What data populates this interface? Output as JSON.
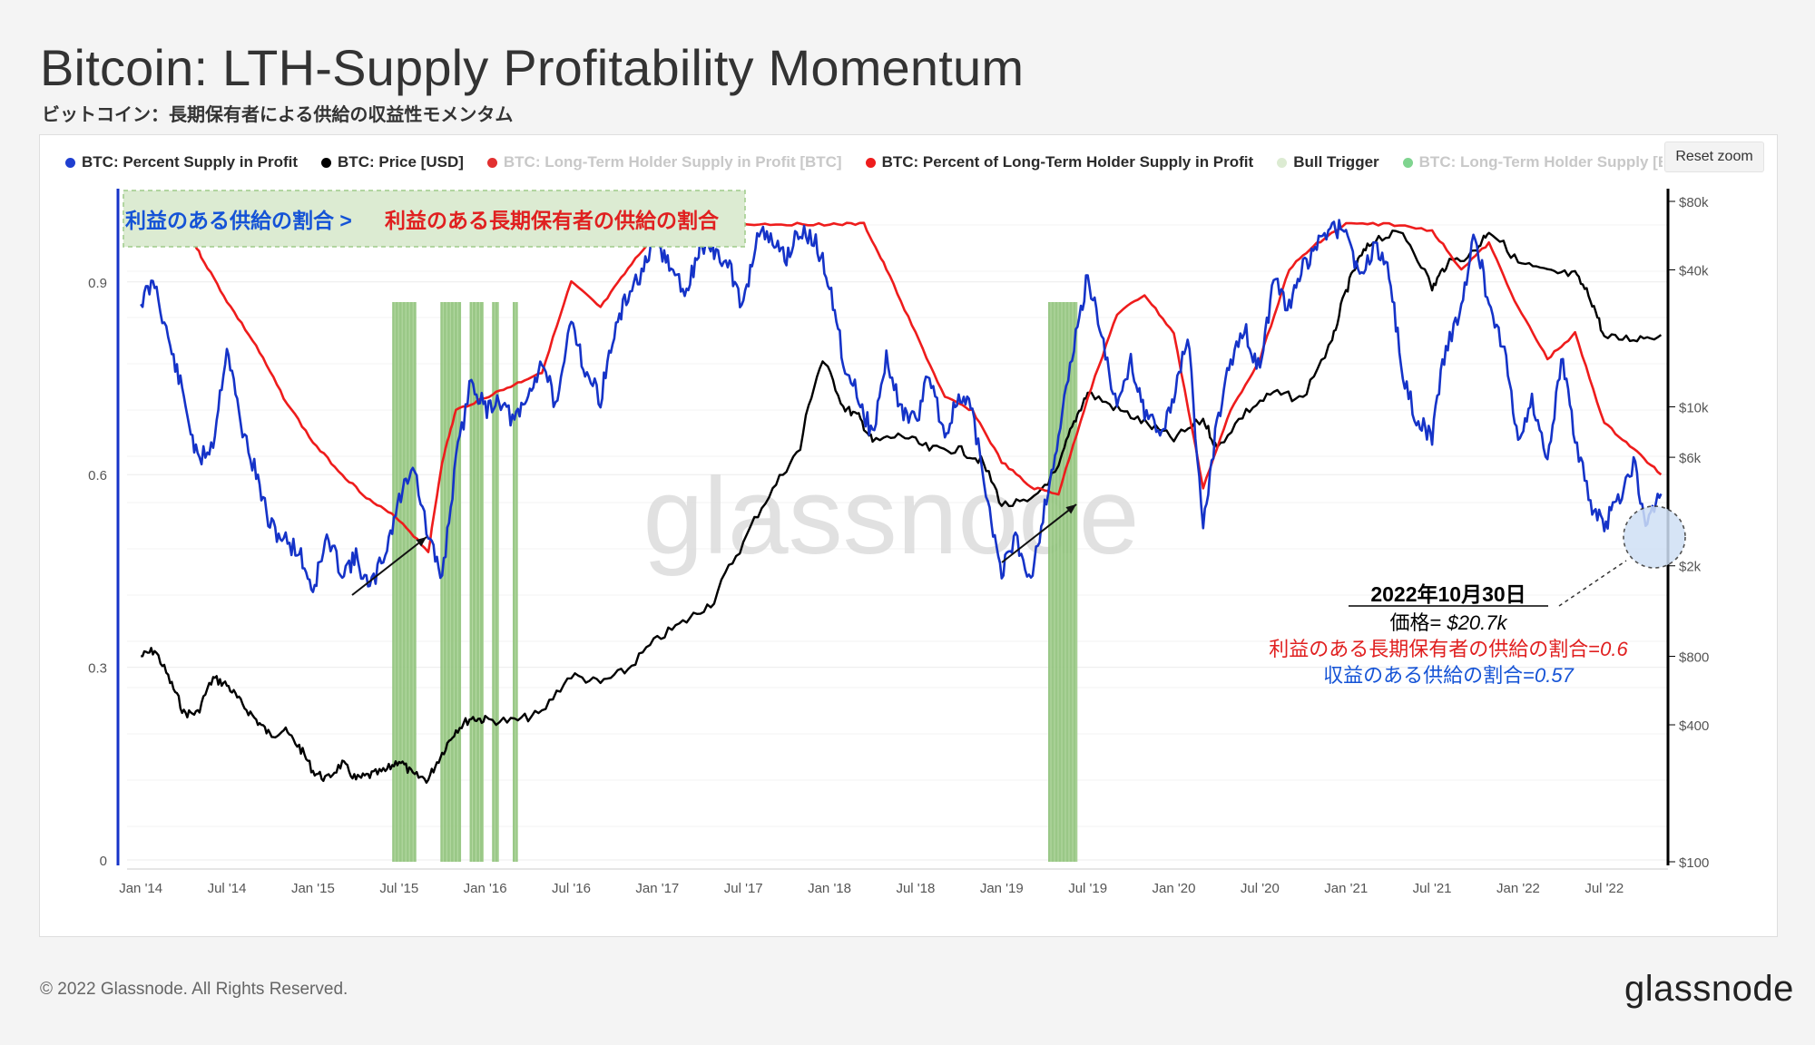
{
  "title": "Bitcoin: LTH-Supply Profitability Momentum",
  "subtitle": "ビットコイン：長期保有者による供給の収益性モメンタム",
  "reset_zoom": "Reset zoom",
  "footer": "© 2022 Glassnode. All Rights Reserved.",
  "brand": "glassnode",
  "watermark": "glassnode",
  "legend": [
    {
      "label": "BTC: Percent Supply in Profit",
      "color": "#1f3fd0",
      "dim": false
    },
    {
      "label": "BTC: Price [USD]",
      "color": "#000000",
      "dim": false
    },
    {
      "label": "BTC: Long-Term Holder Supply in Profit [BTC]",
      "color": "#e23030",
      "dim": true
    },
    {
      "label": "BTC: Percent of Long-Term Holder Supply in Profit",
      "color": "#ee1c1c",
      "dim": false
    },
    {
      "label": "Bull Trigger",
      "color": "#dcebd2",
      "dim": false
    },
    {
      "label": "BTC: Long-Term Holder Supply [BTC",
      "color": "#7fd48f",
      "dim": true
    }
  ],
  "annotation_box": {
    "blue_text": "利益のある供給の割合 >",
    "red_text": "利益のある長期保有者の供給の割合"
  },
  "callout": {
    "date": "2022年10月30日",
    "price_label": "価格= ",
    "price_value": "$20.7k",
    "lth_label": "利益のある長期保有者の供給の割合=",
    "lth_value": "0.6",
    "supply_label": "収益のある供給の割合=",
    "supply_value": "0.57"
  },
  "colors": {
    "supply": "#1533c8",
    "price": "#000000",
    "lth": "#ee1c1c",
    "trigger": "#8fc27a",
    "blue_text": "#1553d6",
    "red_text": "#e02020"
  },
  "chart_data": {
    "type": "line",
    "x_ticks": [
      "Jan '14",
      "Jul '14",
      "Jan '15",
      "Jul '15",
      "Jan '16",
      "Jul '16",
      "Jan '17",
      "Jul '17",
      "Jan '18",
      "Jul '18",
      "Jan '19",
      "Jul '19",
      "Jan '20",
      "Jul '20",
      "Jan '21",
      "Jul '21",
      "Jan '22",
      "Jul '22"
    ],
    "x_range": [
      2013.92,
      2022.87
    ],
    "y_left": {
      "ticks": [
        "0",
        "0.3",
        "0.6",
        "0.9"
      ],
      "range": [
        0,
        1.0
      ]
    },
    "y_right": {
      "scale": "log",
      "ticks": [
        "$100",
        "$400",
        "$800",
        "$2k",
        "$6k",
        "$10k",
        "$40k",
        "$80k"
      ],
      "tick_values": [
        100,
        400,
        800,
        2000,
        6000,
        10000,
        40000,
        80000
      ],
      "range": [
        100,
        80000
      ]
    },
    "series": [
      {
        "name": "BTC: Percent Supply in Profit",
        "axis": "left",
        "x": [
          2014.0,
          2014.08,
          2014.17,
          2014.25,
          2014.33,
          2014.42,
          2014.5,
          2014.58,
          2014.67,
          2014.75,
          2014.83,
          2014.92,
          2015.0,
          2015.08,
          2015.17,
          2015.25,
          2015.33,
          2015.42,
          2015.5,
          2015.58,
          2015.67,
          2015.75,
          2015.83,
          2015.92,
          2016.0,
          2016.08,
          2016.17,
          2016.25,
          2016.33,
          2016.42,
          2016.5,
          2016.58,
          2016.67,
          2016.75,
          2016.83,
          2016.92,
          2017.0,
          2017.08,
          2017.17,
          2017.25,
          2017.33,
          2017.42,
          2017.5,
          2017.58,
          2017.67,
          2017.75,
          2017.83,
          2017.92,
          2018.0,
          2018.08,
          2018.17,
          2018.25,
          2018.33,
          2018.42,
          2018.5,
          2018.58,
          2018.67,
          2018.75,
          2018.83,
          2018.92,
          2019.0,
          2019.08,
          2019.17,
          2019.25,
          2019.33,
          2019.42,
          2019.5,
          2019.58,
          2019.67,
          2019.75,
          2019.83,
          2019.92,
          2020.0,
          2020.08,
          2020.17,
          2020.25,
          2020.33,
          2020.42,
          2020.5,
          2020.58,
          2020.67,
          2020.75,
          2020.83,
          2020.92,
          2021.0,
          2021.08,
          2021.17,
          2021.25,
          2021.33,
          2021.42,
          2021.5,
          2021.58,
          2021.67,
          2021.75,
          2021.83,
          2021.92,
          2022.0,
          2022.08,
          2022.17,
          2022.25,
          2022.33,
          2022.42,
          2022.5,
          2022.58,
          2022.67,
          2022.75,
          2022.83
        ],
        "y": [
          0.87,
          0.9,
          0.8,
          0.72,
          0.62,
          0.65,
          0.8,
          0.68,
          0.6,
          0.52,
          0.5,
          0.48,
          0.42,
          0.5,
          0.45,
          0.47,
          0.42,
          0.48,
          0.56,
          0.62,
          0.5,
          0.44,
          0.62,
          0.75,
          0.7,
          0.72,
          0.68,
          0.72,
          0.78,
          0.7,
          0.85,
          0.76,
          0.72,
          0.82,
          0.88,
          0.92,
          0.96,
          0.92,
          0.88,
          0.96,
          0.95,
          0.92,
          0.86,
          0.98,
          0.96,
          0.94,
          0.98,
          0.96,
          0.9,
          0.78,
          0.72,
          0.66,
          0.78,
          0.7,
          0.68,
          0.76,
          0.66,
          0.72,
          0.7,
          0.55,
          0.45,
          0.5,
          0.44,
          0.55,
          0.66,
          0.8,
          0.91,
          0.82,
          0.7,
          0.78,
          0.7,
          0.66,
          0.72,
          0.82,
          0.52,
          0.68,
          0.78,
          0.82,
          0.76,
          0.9,
          0.86,
          0.92,
          0.96,
          0.98,
          0.99,
          0.9,
          0.96,
          0.92,
          0.75,
          0.68,
          0.66,
          0.8,
          0.86,
          0.98,
          0.86,
          0.8,
          0.65,
          0.72,
          0.62,
          0.78,
          0.66,
          0.55,
          0.52,
          0.56,
          0.62,
          0.52,
          0.57
        ]
      },
      {
        "name": "BTC: Percent of Long-Term Holder Supply in Profit",
        "axis": "left",
        "x": [
          2014.0,
          2014.25,
          2014.35,
          2014.5,
          2014.67,
          2014.83,
          2015.0,
          2015.17,
          2015.33,
          2015.5,
          2015.67,
          2015.75,
          2015.83,
          2016.0,
          2016.17,
          2016.33,
          2016.5,
          2016.67,
          2016.83,
          2017.0,
          2017.25,
          2017.5,
          2017.75,
          2018.0,
          2018.2,
          2018.33,
          2018.5,
          2018.67,
          2018.83,
          2019.0,
          2019.17,
          2019.33,
          2019.5,
          2019.67,
          2019.83,
          2020.0,
          2020.17,
          2020.33,
          2020.5,
          2020.67,
          2020.83,
          2021.0,
          2021.25,
          2021.5,
          2021.67,
          2021.83,
          2022.0,
          2022.17,
          2022.33,
          2022.5,
          2022.67,
          2022.83
        ],
        "y": [
          0.99,
          0.99,
          0.94,
          0.87,
          0.8,
          0.72,
          0.65,
          0.6,
          0.56,
          0.53,
          0.48,
          0.62,
          0.7,
          0.72,
          0.74,
          0.76,
          0.9,
          0.86,
          0.92,
          0.98,
          0.99,
          0.99,
          0.99,
          0.99,
          0.99,
          0.92,
          0.82,
          0.72,
          0.7,
          0.62,
          0.58,
          0.57,
          0.72,
          0.85,
          0.88,
          0.82,
          0.58,
          0.7,
          0.78,
          0.92,
          0.96,
          0.99,
          0.99,
          0.98,
          0.92,
          0.96,
          0.86,
          0.78,
          0.82,
          0.68,
          0.64,
          0.6
        ]
      },
      {
        "name": "BTC: Price [USD]",
        "axis": "right",
        "x": [
          2014.0,
          2014.08,
          2014.17,
          2014.25,
          2014.33,
          2014.42,
          2014.5,
          2014.58,
          2014.67,
          2014.75,
          2014.83,
          2014.92,
          2015.0,
          2015.08,
          2015.17,
          2015.25,
          2015.33,
          2015.42,
          2015.5,
          2015.58,
          2015.67,
          2015.75,
          2015.83,
          2015.92,
          2016.0,
          2016.17,
          2016.33,
          2016.5,
          2016.67,
          2016.83,
          2017.0,
          2017.17,
          2017.33,
          2017.5,
          2017.67,
          2017.83,
          2017.96,
          2018.08,
          2018.17,
          2018.25,
          2018.42,
          2018.58,
          2018.75,
          2018.88,
          2019.0,
          2019.17,
          2019.33,
          2019.42,
          2019.5,
          2019.67,
          2019.83,
          2020.0,
          2020.17,
          2020.25,
          2020.42,
          2020.58,
          2020.75,
          2020.92,
          2021.0,
          2021.08,
          2021.17,
          2021.33,
          2021.5,
          2021.58,
          2021.75,
          2021.83,
          2022.0,
          2022.17,
          2022.33,
          2022.42,
          2022.5,
          2022.67,
          2022.83
        ],
        "y": [
          800,
          850,
          620,
          450,
          450,
          640,
          600,
          500,
          420,
          360,
          380,
          320,
          250,
          230,
          270,
          230,
          240,
          250,
          280,
          240,
          230,
          300,
          380,
          430,
          420,
          415,
          450,
          660,
          610,
          700,
          950,
          1150,
          1400,
          2500,
          4300,
          6500,
          16000,
          10000,
          9000,
          7000,
          7500,
          6500,
          6500,
          5800,
          3700,
          3800,
          5300,
          8500,
          11500,
          9800,
          8500,
          7200,
          8800,
          6500,
          9500,
          11500,
          10800,
          19000,
          32000,
          45000,
          55000,
          58000,
          33000,
          42000,
          48000,
          60000,
          43000,
          39000,
          38000,
          30000,
          20000,
          20000,
          20700
        ]
      }
    ],
    "bull_trigger_bands": [
      [
        2015.46,
        2015.6
      ],
      [
        2015.74,
        2015.86
      ],
      [
        2015.91,
        2015.99
      ],
      [
        2016.04,
        2016.08
      ],
      [
        2016.16,
        2016.19
      ],
      [
        2019.27,
        2019.44
      ]
    ]
  }
}
